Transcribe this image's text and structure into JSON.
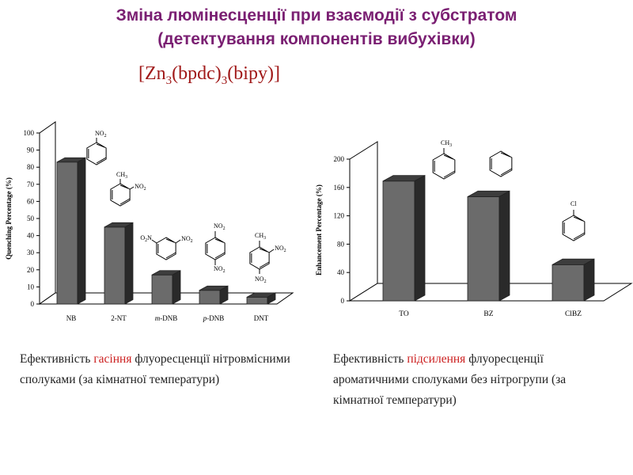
{
  "title": {
    "line1": "Зміна люмінесценції при взаємодії з субстратом",
    "line2": "(детектування компонентів вибухівки)"
  },
  "formula": {
    "open": "[Zn",
    "s1": "3",
    "mid1": "(bpdc)",
    "s2": "3",
    "end": "(bipy)]"
  },
  "chart_data": [
    {
      "type": "bar",
      "ylabel": "Quenching Percentage (%)",
      "categories": [
        "NB",
        "2-NT",
        "m-DNB",
        "p-DNB",
        "DNT"
      ],
      "values": [
        83,
        45,
        17,
        8,
        4
      ],
      "ylim": [
        0,
        100
      ],
      "yticks": [
        0,
        10,
        20,
        30,
        40,
        50,
        60,
        70,
        80,
        90,
        100
      ],
      "molecule_labels": [
        "NO2",
        "CH3 / NO2",
        "O2N / NO2",
        "NO2 / NO2",
        "CH3 / NO2 / NO2"
      ]
    },
    {
      "type": "bar",
      "ylabel": "Enhancement Percentage (%)",
      "categories": [
        "TO",
        "BZ",
        "ClBZ"
      ],
      "values": [
        169,
        147,
        51
      ],
      "ylim": [
        0,
        200
      ],
      "yticks": [
        0,
        40,
        80,
        120,
        160,
        200
      ],
      "molecule_labels": [
        "CH3",
        "",
        "Cl"
      ]
    }
  ],
  "captions": {
    "left": {
      "pre": "Ефективність ",
      "highlight": "гасіння",
      "post": " флуоресценції нітровмісними сполуками (за кімнатної температури)"
    },
    "right": {
      "pre": "Ефективність ",
      "highlight": "підсилення",
      "post": " флуоресценції ароматичними сполуками без нітрогрупи (за кімнатної температури)"
    }
  },
  "colors": {
    "title": "#7a1f72",
    "formula": "#a01818",
    "highlight": "#cc2020",
    "bar_front": "#6b6b6b",
    "bar_top": "#3d3d3d",
    "bar_side": "#2a2a2a"
  }
}
